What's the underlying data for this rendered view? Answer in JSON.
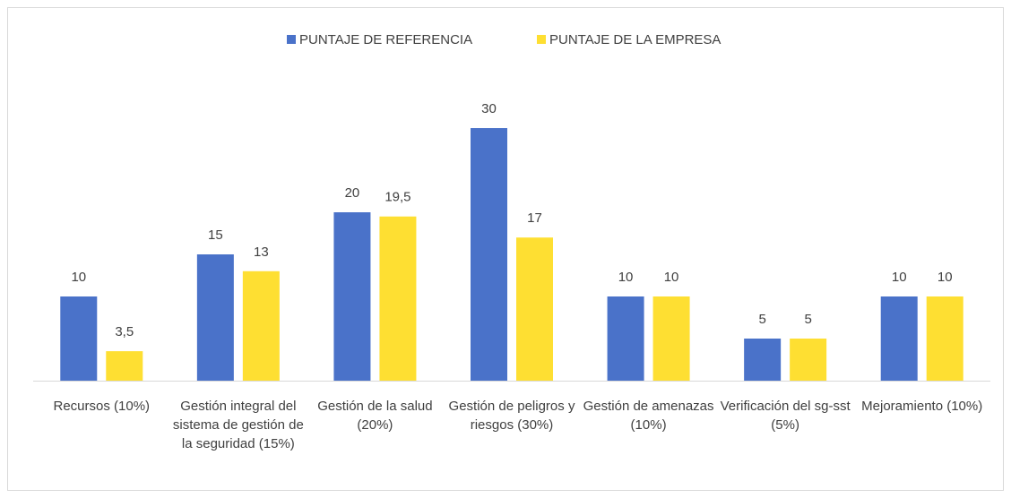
{
  "chart_data": {
    "type": "bar",
    "categories": [
      "Recursos (10%)",
      "Gestión integral del sistema de gestión de la seguridad (15%)",
      "Gestión de la salud (20%)",
      "Gestión de peligros y riesgos (30%)",
      "Gestión de amenazas (10%)",
      "Verificación del sg-sst (5%)",
      "Mejoramiento (10%)"
    ],
    "series": [
      {
        "name": "PUNTAJE DE REFERENCIA",
        "color": "#4a72c9",
        "values": [
          10,
          15,
          20,
          30,
          10,
          5,
          10
        ]
      },
      {
        "name": "PUNTAJE DE LA EMPRESA",
        "color": "#fedf32",
        "values": [
          3.5,
          13,
          19.5,
          17,
          10,
          5,
          10
        ],
        "value_labels": [
          "3,5",
          "13",
          "19,5",
          "17",
          "10",
          "5",
          "10"
        ]
      }
    ],
    "legend": "top"
  }
}
